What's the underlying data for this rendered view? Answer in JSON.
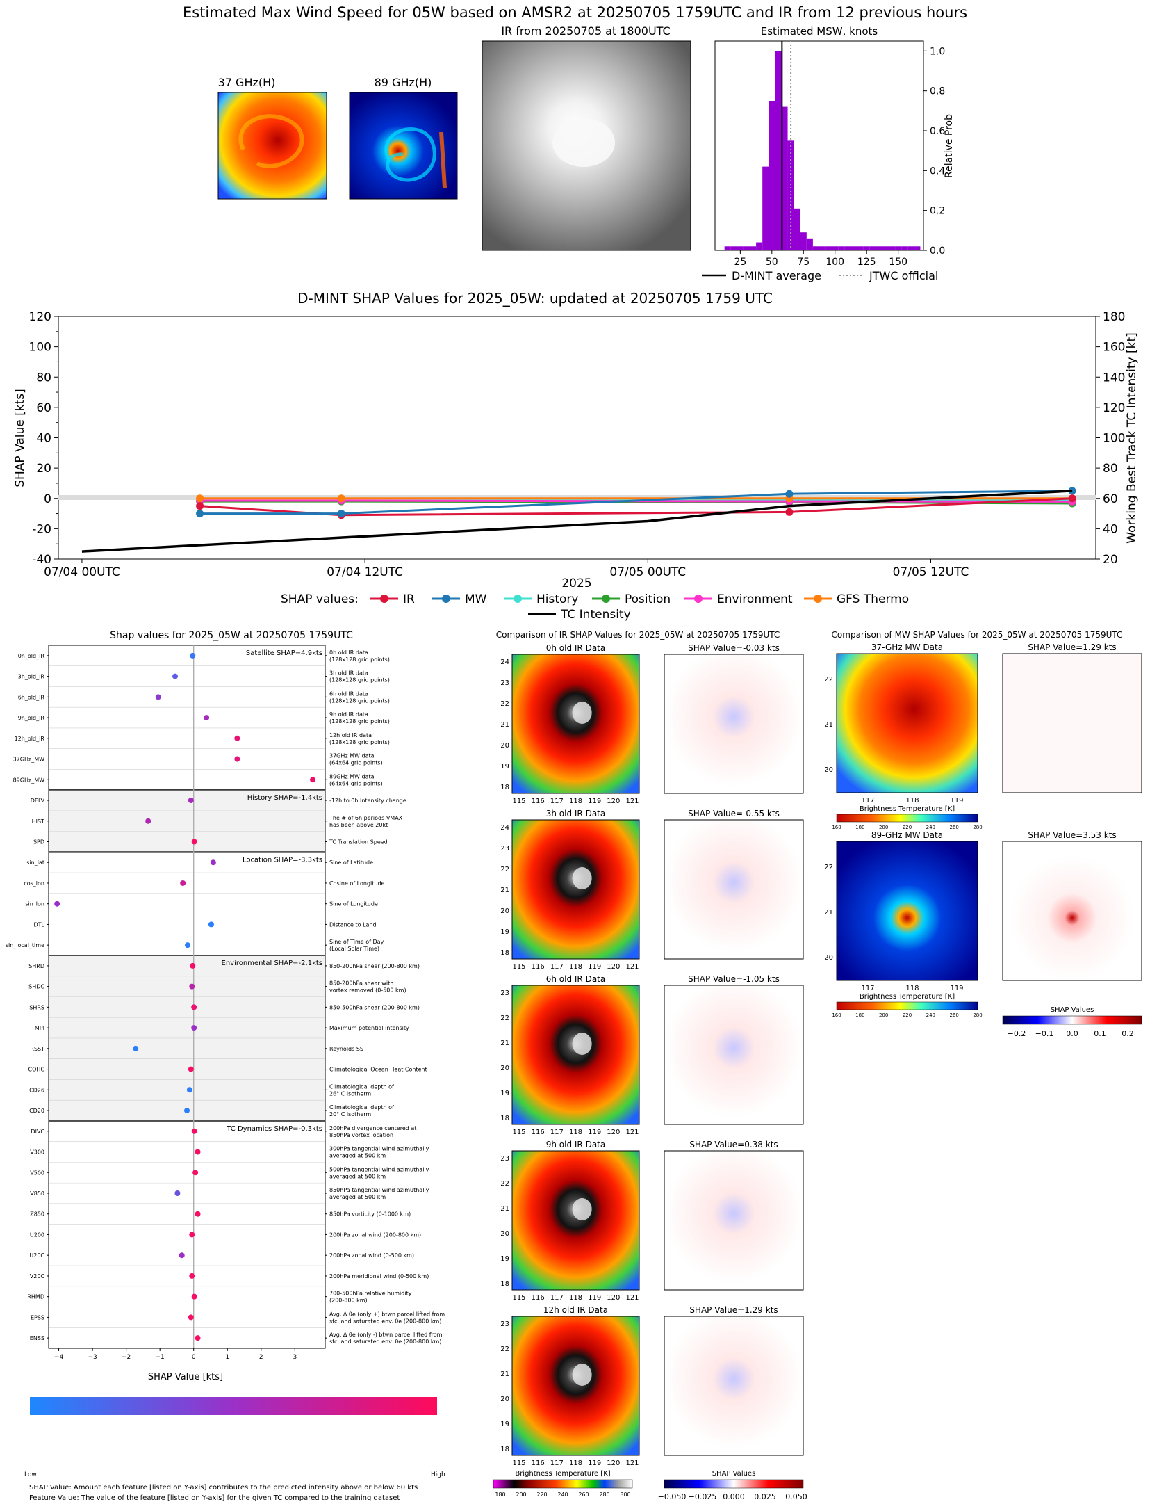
{
  "main_title": "Estimated Max Wind Speed for 05W based on AMSR2 at 20250705 1759UTC and IR from 12 previous hours",
  "colors": {
    "ir": "#dc143c",
    "mw": "#1f77b4",
    "history": "#40e0d0",
    "position": "#2ca02c",
    "environment": "#ff33cc",
    "gfs": "#ff7f0e",
    "intensity": "#000000",
    "hist_bar": "#9400d3",
    "shap_low": "#1e88ff",
    "shap_high": "#ff0a5a"
  },
  "panels": {
    "mw37_title": "37 GHz(H)",
    "mw89_title": "89 GHz(H)",
    "ir_title": "IR from 20250705 at 1800UTC",
    "hist_title": "Estimated MSW, knots",
    "hist_ylabel": "Relative Prob",
    "hist_legend": [
      "D-MINT average",
      "JTWC official"
    ]
  },
  "shap_time": {
    "title": "D-MINT SHAP Values for 2025_05W: updated at 20250705 1759 UTC",
    "ylabel_left": "SHAP Value [kts]",
    "ylabel_right": "Working Best Track TC Intensity [kt]",
    "xlabel": "2025",
    "legend_prefix": "SHAP values:",
    "legend_labels": [
      "IR",
      "MW",
      "History",
      "Position",
      "Environment",
      "GFS Thermo",
      "TC Intensity"
    ]
  },
  "bee": {
    "title": "Shap values for 2025_05W at 20250705 1759UTC",
    "xlabel": "SHAP Value [kts]",
    "group_labels": [
      "Satellite SHAP=4.9kts",
      "History SHAP=-1.4kts",
      "Location SHAP=-3.3kts",
      "Environmental SHAP=-2.1kts",
      "TC Dynamics SHAP=-0.3kts"
    ],
    "colorbar_low": "Low",
    "colorbar_high": "High",
    "note1": "SHAP Value: Amount each feature [listed on Y-axis] contributes to the predicted intensity above or below 60 kts",
    "note2": "Feature Value: The value of the feature [listed on Y-axis] for the given TC compared to the training dataset"
  },
  "ir_comp": {
    "title": "Comparison of IR SHAP Values for 2025_05W at 20250705 1759UTC",
    "rows": [
      {
        "left": "0h old IR Data",
        "right": "SHAP Value=-0.03 kts"
      },
      {
        "left": "3h old IR Data",
        "right": "SHAP Value=-0.55 kts"
      },
      {
        "left": "6h old IR Data",
        "right": "SHAP Value=-1.05 kts"
      },
      {
        "left": "9h old IR Data",
        "right": "SHAP Value=0.38 kts"
      },
      {
        "left": "12h old IR Data",
        "right": "SHAP Value=1.29 kts"
      }
    ],
    "cb_left_label": "Brightness Temperature [K]",
    "cb_right_label": "SHAP Values"
  },
  "mw_comp": {
    "title": "Comparison of MW SHAP Values for 2025_05W at 20250705 1759UTC",
    "rows": [
      {
        "left": "37-GHz MW Data",
        "right": "SHAP Value=1.29 kts"
      },
      {
        "left": "89-GHz MW Data",
        "right": "SHAP Value=3.53 kts"
      }
    ],
    "cb_label": "Brightness Temperature [K]",
    "cb_shap_label": "SHAP Values"
  },
  "chart_data": [
    {
      "type": "bar",
      "title": "Estimated MSW, knots",
      "ylabel": "Relative Prob",
      "xlim": [
        5,
        170
      ],
      "ylim": [
        0,
        1.05
      ],
      "xticks": [
        25,
        50,
        75,
        100,
        125,
        150
      ],
      "yticks": [
        0.0,
        0.2,
        0.4,
        0.6,
        0.8,
        1.0
      ],
      "bin_width": 5,
      "bins": [
        {
          "x": 15,
          "y": 0.02
        },
        {
          "x": 20,
          "y": 0.02
        },
        {
          "x": 25,
          "y": 0.02
        },
        {
          "x": 30,
          "y": 0.02
        },
        {
          "x": 35,
          "y": 0.02
        },
        {
          "x": 40,
          "y": 0.04
        },
        {
          "x": 45,
          "y": 0.42
        },
        {
          "x": 50,
          "y": 0.75
        },
        {
          "x": 55,
          "y": 1.0
        },
        {
          "x": 60,
          "y": 0.72
        },
        {
          "x": 65,
          "y": 0.55
        },
        {
          "x": 70,
          "y": 0.21
        },
        {
          "x": 75,
          "y": 0.09
        },
        {
          "x": 80,
          "y": 0.06
        },
        {
          "x": 85,
          "y": 0.02
        },
        {
          "x": 90,
          "y": 0.02
        },
        {
          "x": 95,
          "y": 0.02
        },
        {
          "x": 100,
          "y": 0.02
        },
        {
          "x": 105,
          "y": 0.02
        },
        {
          "x": 110,
          "y": 0.02
        },
        {
          "x": 115,
          "y": 0.02
        },
        {
          "x": 120,
          "y": 0.02
        },
        {
          "x": 125,
          "y": 0.02
        },
        {
          "x": 130,
          "y": 0.02
        },
        {
          "x": 135,
          "y": 0.02
        },
        {
          "x": 140,
          "y": 0.02
        },
        {
          "x": 145,
          "y": 0.02
        },
        {
          "x": 150,
          "y": 0.02
        },
        {
          "x": 155,
          "y": 0.02
        },
        {
          "x": 160,
          "y": 0.02
        },
        {
          "x": 165,
          "y": 0.02
        }
      ],
      "dmint_average": 58,
      "jtwc_official": 65
    },
    {
      "type": "line",
      "title": "D-MINT SHAP Values for 2025_05W: updated at 20250705 1759 UTC",
      "xlabel": "2025",
      "ylabel": "SHAP Value [kts]",
      "ylabel_right": "Working Best Track TC Intensity [kt]",
      "ylim": [
        -40,
        120
      ],
      "ylim_right": [
        20,
        180
      ],
      "yticks": [
        -40,
        -20,
        0,
        20,
        40,
        60,
        80,
        100,
        120
      ],
      "yticks_right": [
        20,
        40,
        60,
        80,
        100,
        120,
        140,
        160,
        180
      ],
      "xlim_hours": [
        -1,
        43
      ],
      "xticks": [
        {
          "h": 0,
          "label": "07/04 00UTC"
        },
        {
          "h": 12,
          "label": "07/04 12UTC"
        },
        {
          "h": 24,
          "label": "07/05 00UTC"
        },
        {
          "h": 36,
          "label": "07/05 12UTC"
        }
      ],
      "x_hours": [
        5,
        11,
        30,
        42
      ],
      "series": [
        {
          "name": "IR",
          "values": [
            -5,
            -11,
            -9,
            0
          ]
        },
        {
          "name": "MW",
          "values": [
            -10,
            -10,
            3,
            5
          ]
        },
        {
          "name": "History",
          "values": [
            -1.5,
            -1.5,
            -1.4,
            -1.4
          ]
        },
        {
          "name": "Position",
          "values": [
            -2,
            -2,
            -2.5,
            -3.3
          ]
        },
        {
          "name": "Environment",
          "values": [
            -1.5,
            -1.5,
            -2,
            -2.1
          ]
        },
        {
          "name": "GFS Thermo",
          "values": [
            0,
            0,
            0,
            0
          ]
        }
      ],
      "intensity": {
        "name": "TC Intensity",
        "x_hours": [
          0,
          6,
          12,
          18,
          24,
          30,
          36,
          42
        ],
        "values": [
          25,
          30,
          35,
          40,
          45,
          55,
          60,
          65
        ]
      }
    },
    {
      "type": "scatter",
      "title": "Shap values for 2025_05W at 20250705 1759UTC",
      "xlabel": "SHAP Value [kts]",
      "xlim": [
        -4.3,
        3.9
      ],
      "xticks": [
        -4,
        -3,
        -2,
        -1,
        0,
        1,
        2,
        3
      ],
      "features": [
        {
          "name": "0h_old_IR",
          "desc": [
            "0h old IR data",
            "(128x128 grid points)"
          ],
          "x": -0.03,
          "c": 0.1
        },
        {
          "name": "3h_old_IR",
          "desc": [
            "3h old IR data",
            "(128x128 grid points)"
          ],
          "x": -0.55,
          "c": 0.25
        },
        {
          "name": "6h_old_IR",
          "desc": [
            "6h old IR data",
            "(128x128 grid points)"
          ],
          "x": -1.05,
          "c": 0.45
        },
        {
          "name": "9h_old_IR",
          "desc": [
            "9h old IR data",
            "(128x128 grid points)"
          ],
          "x": 0.38,
          "c": 0.55
        },
        {
          "name": "12h_old_IR",
          "desc": [
            "12h old IR data",
            "(128x128 grid points)"
          ],
          "x": 1.29,
          "c": 0.88
        },
        {
          "name": "37GHz_MW",
          "desc": [
            "37GHz MW data",
            "(64x64 grid points)"
          ],
          "x": 1.29,
          "c": 0.85
        },
        {
          "name": "89GHz_MW",
          "desc": [
            "89GHz MW data",
            "(64x64 grid points)"
          ],
          "x": 3.53,
          "c": 0.92
        },
        {
          "name": "DELV",
          "desc": [
            "-12h to 0h Intensity change"
          ],
          "x": -0.08,
          "c": 0.55
        },
        {
          "name": "HIST",
          "desc": [
            "The # of 6h periods VMAX",
            "has been above 20kt"
          ],
          "x": -1.35,
          "c": 0.6
        },
        {
          "name": "SPD",
          "desc": [
            "TC Translation Speed"
          ],
          "x": 0.02,
          "c": 0.95
        },
        {
          "name": "sin_lat",
          "desc": [
            "Sine of Latitude"
          ],
          "x": 0.58,
          "c": 0.5
        },
        {
          "name": "cos_lon",
          "desc": [
            "Cosine of Longitude"
          ],
          "x": -0.32,
          "c": 0.72
        },
        {
          "name": "sin_lon",
          "desc": [
            "Sine of Longitude"
          ],
          "x": -4.05,
          "c": 0.5
        },
        {
          "name": "DTL",
          "desc": [
            "Distance to Land"
          ],
          "x": 0.52,
          "c": 0.05
        },
        {
          "name": "sin_local_time",
          "desc": [
            "Sine of Time of Day",
            "(Local Solar Time)"
          ],
          "x": -0.18,
          "c": 0.05
        },
        {
          "name": "SHRD",
          "desc": [
            "850-200hPa shear (200-800 km)"
          ],
          "x": -0.03,
          "c": 0.95
        },
        {
          "name": "SHDC",
          "desc": [
            "850-200hPa shear with",
            "vortex removed (0-500 km)"
          ],
          "x": -0.05,
          "c": 0.65
        },
        {
          "name": "SHRS",
          "desc": [
            "850-500hPa shear (200-800 km)"
          ],
          "x": 0.01,
          "c": 0.9
        },
        {
          "name": "MPI",
          "desc": [
            "Maximum potential intensity"
          ],
          "x": 0.01,
          "c": 0.5
        },
        {
          "name": "RSST",
          "desc": [
            "Reynolds SST"
          ],
          "x": -1.72,
          "c": 0.05
        },
        {
          "name": "COHC",
          "desc": [
            "Climatological Ocean Heat Content"
          ],
          "x": -0.08,
          "c": 0.95
        },
        {
          "name": "CD26",
          "desc": [
            "Climatological depth of",
            "26° C isotherm"
          ],
          "x": -0.12,
          "c": 0.05
        },
        {
          "name": "CD20",
          "desc": [
            "Climatological depth of",
            "20° C isotherm"
          ],
          "x": -0.2,
          "c": 0.05
        },
        {
          "name": "DIVC",
          "desc": [
            "200hPa divergence centered at",
            "850hPa vortex location"
          ],
          "x": 0.02,
          "c": 0.95
        },
        {
          "name": "V300",
          "desc": [
            "300hPa tangential wind azimuthally",
            "averaged at 500 km"
          ],
          "x": 0.12,
          "c": 0.95
        },
        {
          "name": "V500",
          "desc": [
            "500hPa tangential wind azimuthally",
            "averaged at 500 km"
          ],
          "x": 0.05,
          "c": 0.95
        },
        {
          "name": "V850",
          "desc": [
            "850hPa tangential wind azimuthally",
            "averaged at 500 km"
          ],
          "x": -0.48,
          "c": 0.3
        },
        {
          "name": "Z850",
          "desc": [
            "850hPa vorticity (0-1000 km)"
          ],
          "x": 0.12,
          "c": 0.95
        },
        {
          "name": "U200",
          "desc": [
            "200hPa zonal wind (200-800 km)"
          ],
          "x": -0.05,
          "c": 0.95
        },
        {
          "name": "U20C",
          "desc": [
            "200hPa zonal wind (0-500 km)"
          ],
          "x": -0.35,
          "c": 0.5
        },
        {
          "name": "V20C",
          "desc": [
            "200hPa meridional wind (0-500 km)"
          ],
          "x": -0.05,
          "c": 0.95
        },
        {
          "name": "RHMD",
          "desc": [
            "700-500hPa relative humidity",
            "(200-800 km)"
          ],
          "x": 0.02,
          "c": 0.95
        },
        {
          "name": "EPSS",
          "desc": [
            "Avg. Δ θe (only +) btwn parcel lifted from",
            "sfc. and saturated env. θe (200-800 km)"
          ],
          "x": -0.08,
          "c": 0.95
        },
        {
          "name": "ENSS",
          "desc": [
            "Avg. Δ θe (only -) btwn parcel lifted from",
            "sfc. and saturated env. θe (200-800 km)"
          ],
          "x": 0.12,
          "c": 0.95
        }
      ]
    }
  ]
}
